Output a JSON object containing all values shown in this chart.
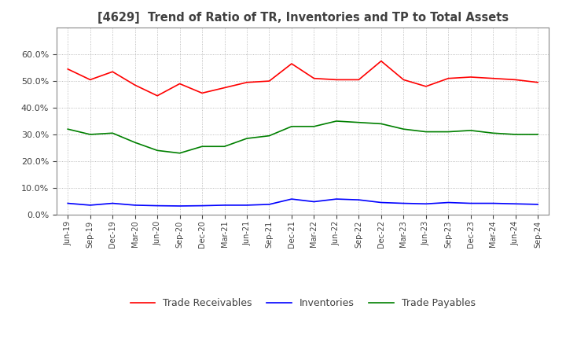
{
  "title": "[4629]  Trend of Ratio of TR, Inventories and TP to Total Assets",
  "x_labels": [
    "Jun-19",
    "Sep-19",
    "Dec-19",
    "Mar-20",
    "Jun-20",
    "Sep-20",
    "Dec-20",
    "Mar-21",
    "Jun-21",
    "Sep-21",
    "Dec-21",
    "Mar-22",
    "Jun-22",
    "Sep-22",
    "Dec-22",
    "Mar-23",
    "Jun-23",
    "Sep-23",
    "Dec-23",
    "Mar-24",
    "Jun-24",
    "Sep-24"
  ],
  "trade_receivables": [
    0.545,
    0.505,
    0.535,
    0.485,
    0.445,
    0.49,
    0.455,
    0.475,
    0.495,
    0.5,
    0.565,
    0.51,
    0.505,
    0.505,
    0.575,
    0.505,
    0.48,
    0.51,
    0.515,
    0.51,
    0.505,
    0.495
  ],
  "inventories": [
    0.042,
    0.035,
    0.042,
    0.035,
    0.033,
    0.032,
    0.033,
    0.035,
    0.035,
    0.038,
    0.058,
    0.048,
    0.058,
    0.055,
    0.045,
    0.042,
    0.04,
    0.045,
    0.042,
    0.042,
    0.04,
    0.038
  ],
  "trade_payables": [
    0.32,
    0.3,
    0.305,
    0.27,
    0.24,
    0.23,
    0.255,
    0.255,
    0.285,
    0.295,
    0.33,
    0.33,
    0.35,
    0.345,
    0.34,
    0.32,
    0.31,
    0.31,
    0.315,
    0.305,
    0.3,
    0.3
  ],
  "tr_color": "#FF0000",
  "inv_color": "#0000FF",
  "tp_color": "#008000",
  "ylim": [
    0.0,
    0.7
  ],
  "yticks": [
    0.0,
    0.1,
    0.2,
    0.3,
    0.4,
    0.5,
    0.6
  ],
  "legend_labels": [
    "Trade Receivables",
    "Inventories",
    "Trade Payables"
  ],
  "background_color": "#FFFFFF",
  "plot_bg_color": "#FFFFFF",
  "title_color": "#404040",
  "tick_color": "#404040"
}
